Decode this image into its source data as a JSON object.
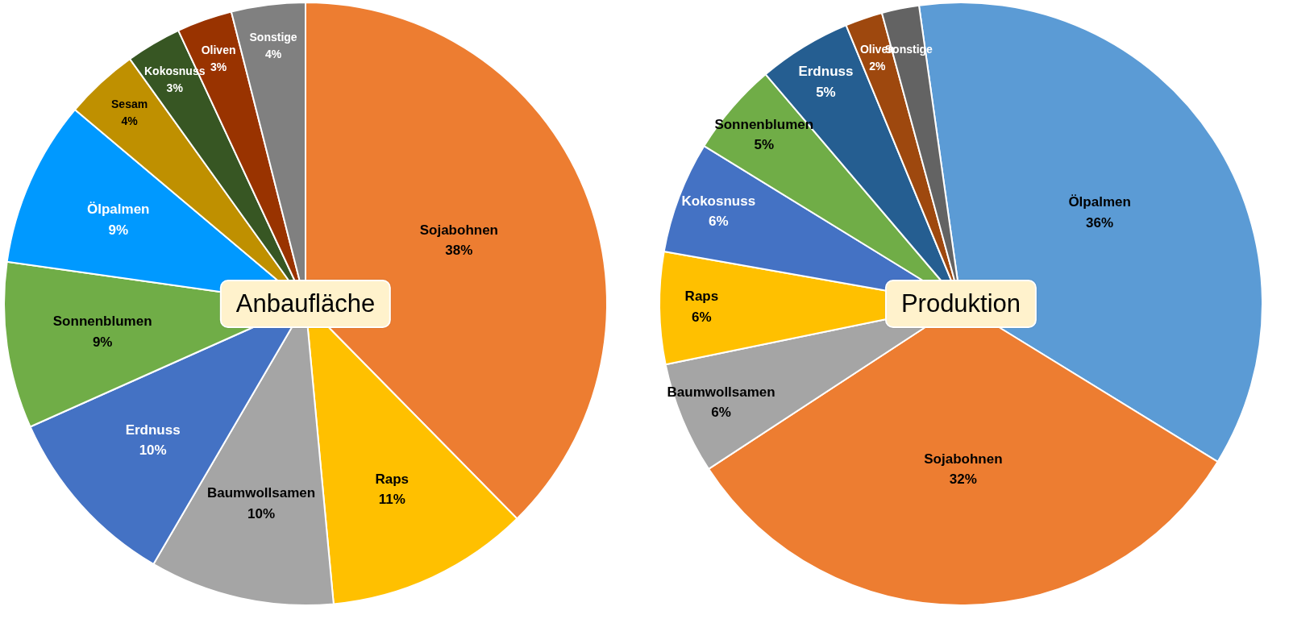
{
  "chart_data": [
    {
      "type": "pie",
      "title": "Anbaufläche",
      "categories": [
        "Sojabohnen",
        "Raps",
        "Baumwollsamen",
        "Erdnuss",
        "Sonnenblumen",
        "Ölpalmen",
        "Sesam",
        "Kokosnuss",
        "Oliven",
        "Sonstige"
      ],
      "values": [
        38,
        11,
        10,
        10,
        9,
        9,
        4,
        3,
        3,
        4
      ],
      "value_labels": [
        "38%",
        "11%",
        "10%",
        "10%",
        "9%",
        "9%",
        "4%",
        "3%",
        "3%",
        "4%"
      ],
      "colors": [
        "#ED7D31",
        "#FFC000",
        "#A5A5A5",
        "#4472C4",
        "#70AD47",
        "#0099FF",
        "#BF9000",
        "#375623",
        "#993300",
        "#808080"
      ],
      "data_labels": true
    },
    {
      "type": "pie",
      "title": "Produktion",
      "categories": [
        "Ölpalmen",
        "Sojabohnen",
        "Baumwollsamen",
        "Raps",
        "Kokosnuss",
        "Sonnenblumen",
        "Erdnuss",
        "Oliven",
        "Sonstige"
      ],
      "values": [
        36,
        32,
        6,
        6,
        6,
        5,
        5,
        2,
        2
      ],
      "value_labels": [
        "36%",
        "32%",
        "6%",
        "6%",
        "6%",
        "5%",
        "5%",
        "2%",
        null
      ],
      "colors": [
        "#5B9BD5",
        "#ED7D31",
        "#A5A5A5",
        "#FFC000",
        "#4472C4",
        "#70AD47",
        "#255E91",
        "#9E480E",
        "#636363"
      ],
      "data_labels": true
    }
  ]
}
